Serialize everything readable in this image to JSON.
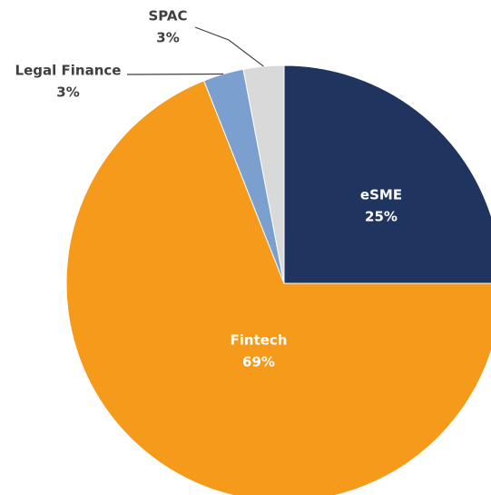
{
  "chart_data": {
    "type": "pie",
    "categories": [
      "eSME",
      "Fintech",
      "Legal Finance",
      "SPAC"
    ],
    "values": [
      25,
      69,
      3,
      3
    ],
    "value_labels": [
      "25%",
      "69%",
      "3%",
      "3%"
    ],
    "colors": [
      "#1f3560",
      "#f59a1b",
      "#7b9fcf",
      "#d9d9d9"
    ]
  }
}
